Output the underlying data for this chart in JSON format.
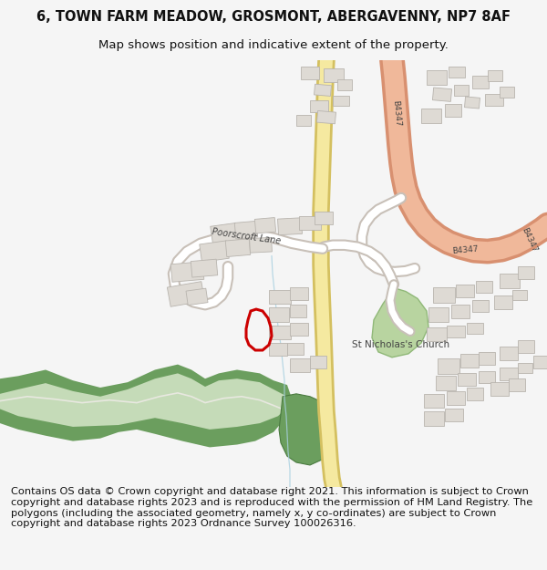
{
  "title_line1": "6, TOWN FARM MEADOW, GROSMONT, ABERGAVENNY, NP7 8AF",
  "title_line2": "Map shows position and indicative extent of the property.",
  "footer": "Contains OS data © Crown copyright and database right 2021. This information is subject to Crown copyright and database rights 2023 and is reproduced with the permission of HM Land Registry. The polygons (including the associated geometry, namely x, y co-ordinates) are subject to Crown copyright and database rights 2023 Ordnance Survey 100026316.",
  "bg_color": "#f5f5f5",
  "map_bg": "#ffffff",
  "road_yellow_fill": "#f5e9a0",
  "road_yellow_edge": "#d4c060",
  "road_salmon_fill": "#f0b89a",
  "road_salmon_edge": "#d89070",
  "road_white_fill": "#ffffff",
  "road_white_edge": "#c8c0b8",
  "building_color": "#dedad4",
  "building_edge": "#b8b4ae",
  "green_light": "#b8d4a0",
  "green_light_edge": "#90b878",
  "green_dark": "#6b9e5e",
  "green_dark_edge": "#4a7a40",
  "stream_color": "#a8d0e0",
  "plot_color": "#cc0000",
  "title_fontsize": 10.5,
  "subtitle_fontsize": 9.5,
  "footer_fontsize": 8.2,
  "label_color": "#444444"
}
